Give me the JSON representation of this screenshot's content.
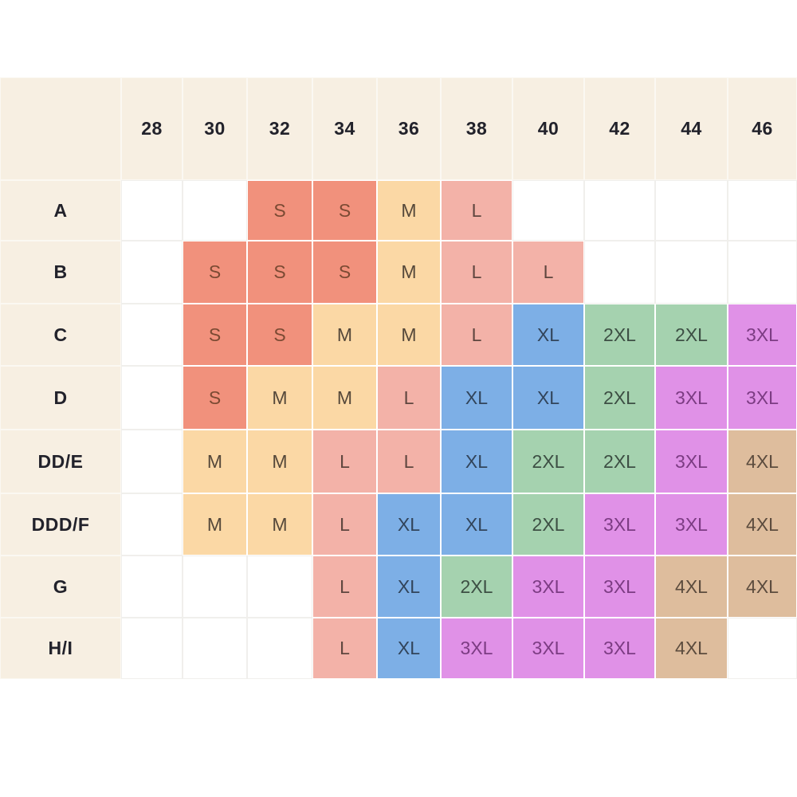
{
  "chart_data": {
    "type": "table",
    "title": "",
    "columns": [
      "28",
      "30",
      "32",
      "34",
      "36",
      "38",
      "40",
      "42",
      "44",
      "46"
    ],
    "rows": [
      {
        "label": "A",
        "cells": [
          "",
          "",
          "S",
          "S",
          "M",
          "L",
          "",
          "",
          "",
          ""
        ]
      },
      {
        "label": "B",
        "cells": [
          "",
          "S",
          "S",
          "S",
          "M",
          "L",
          "L",
          "",
          "",
          ""
        ]
      },
      {
        "label": "C",
        "cells": [
          "",
          "S",
          "S",
          "M",
          "M",
          "L",
          "XL",
          "2XL",
          "2XL",
          "3XL"
        ]
      },
      {
        "label": "D",
        "cells": [
          "",
          "S",
          "M",
          "M",
          "L",
          "XL",
          "XL",
          "2XL",
          "3XL",
          "3XL"
        ]
      },
      {
        "label": "DD/E",
        "cells": [
          "",
          "M",
          "M",
          "L",
          "L",
          "XL",
          "2XL",
          "2XL",
          "3XL",
          "4XL"
        ]
      },
      {
        "label": "DDD/F",
        "cells": [
          "",
          "M",
          "M",
          "L",
          "XL",
          "XL",
          "2XL",
          "3XL",
          "3XL",
          "4XL"
        ]
      },
      {
        "label": "G",
        "cells": [
          "",
          "",
          "",
          "L",
          "XL",
          "2XL",
          "3XL",
          "3XL",
          "4XL",
          "4XL"
        ]
      },
      {
        "label": "H/I",
        "cells": [
          "",
          "",
          "",
          "L",
          "XL",
          "3XL",
          "3XL",
          "3XL",
          "4XL",
          ""
        ]
      }
    ],
    "legend_entries": [
      "S",
      "M",
      "L",
      "XL",
      "2XL",
      "3XL",
      "4XL"
    ],
    "grid": "on"
  },
  "palette": {
    "page_bg": "#ffffff",
    "header_bg": "#f7efe2",
    "header_text": "#22222b",
    "empty_bg": "#ffffff",
    "empty_border": "#f0efec",
    "sizes": {
      "S": {
        "bg": "#f1917c",
        "text": "#7b4a33"
      },
      "M": {
        "bg": "#fbd8a5",
        "text": "#55483a"
      },
      "L": {
        "bg": "#f3b2a8",
        "text": "#5f463f"
      },
      "XL": {
        "bg": "#7dafe6",
        "text": "#32455b"
      },
      "2XL": {
        "bg": "#a5d2af",
        "text": "#3d4f44"
      },
      "3XL": {
        "bg": "#e091e7",
        "text": "#7c3c83"
      },
      "4XL": {
        "bg": "#debd9d",
        "text": "#5c4c3e"
      }
    }
  }
}
